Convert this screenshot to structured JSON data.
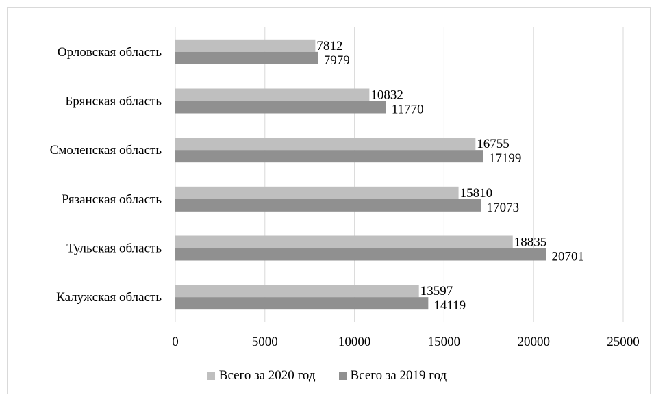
{
  "chart_data": {
    "type": "bar",
    "orientation": "horizontal",
    "categories": [
      "Орловская область",
      "Брянская область",
      "Смоленская область",
      "Рязанская область",
      "Тульская область",
      "Калужская область"
    ],
    "series": [
      {
        "name": "Всего за 2020 год",
        "color": "#bfbfbf",
        "values": [
          7812,
          10832,
          16755,
          15810,
          18835,
          13597
        ]
      },
      {
        "name": "Всего за 2019 год",
        "color": "#909090",
        "values": [
          7979,
          11770,
          17199,
          17073,
          20701,
          14119
        ]
      }
    ],
    "xlim": [
      0,
      25000
    ],
    "xticks": [
      0,
      5000,
      10000,
      15000,
      20000,
      25000
    ],
    "grid": "vertical",
    "legend_position": "bottom",
    "data_labels": true
  }
}
